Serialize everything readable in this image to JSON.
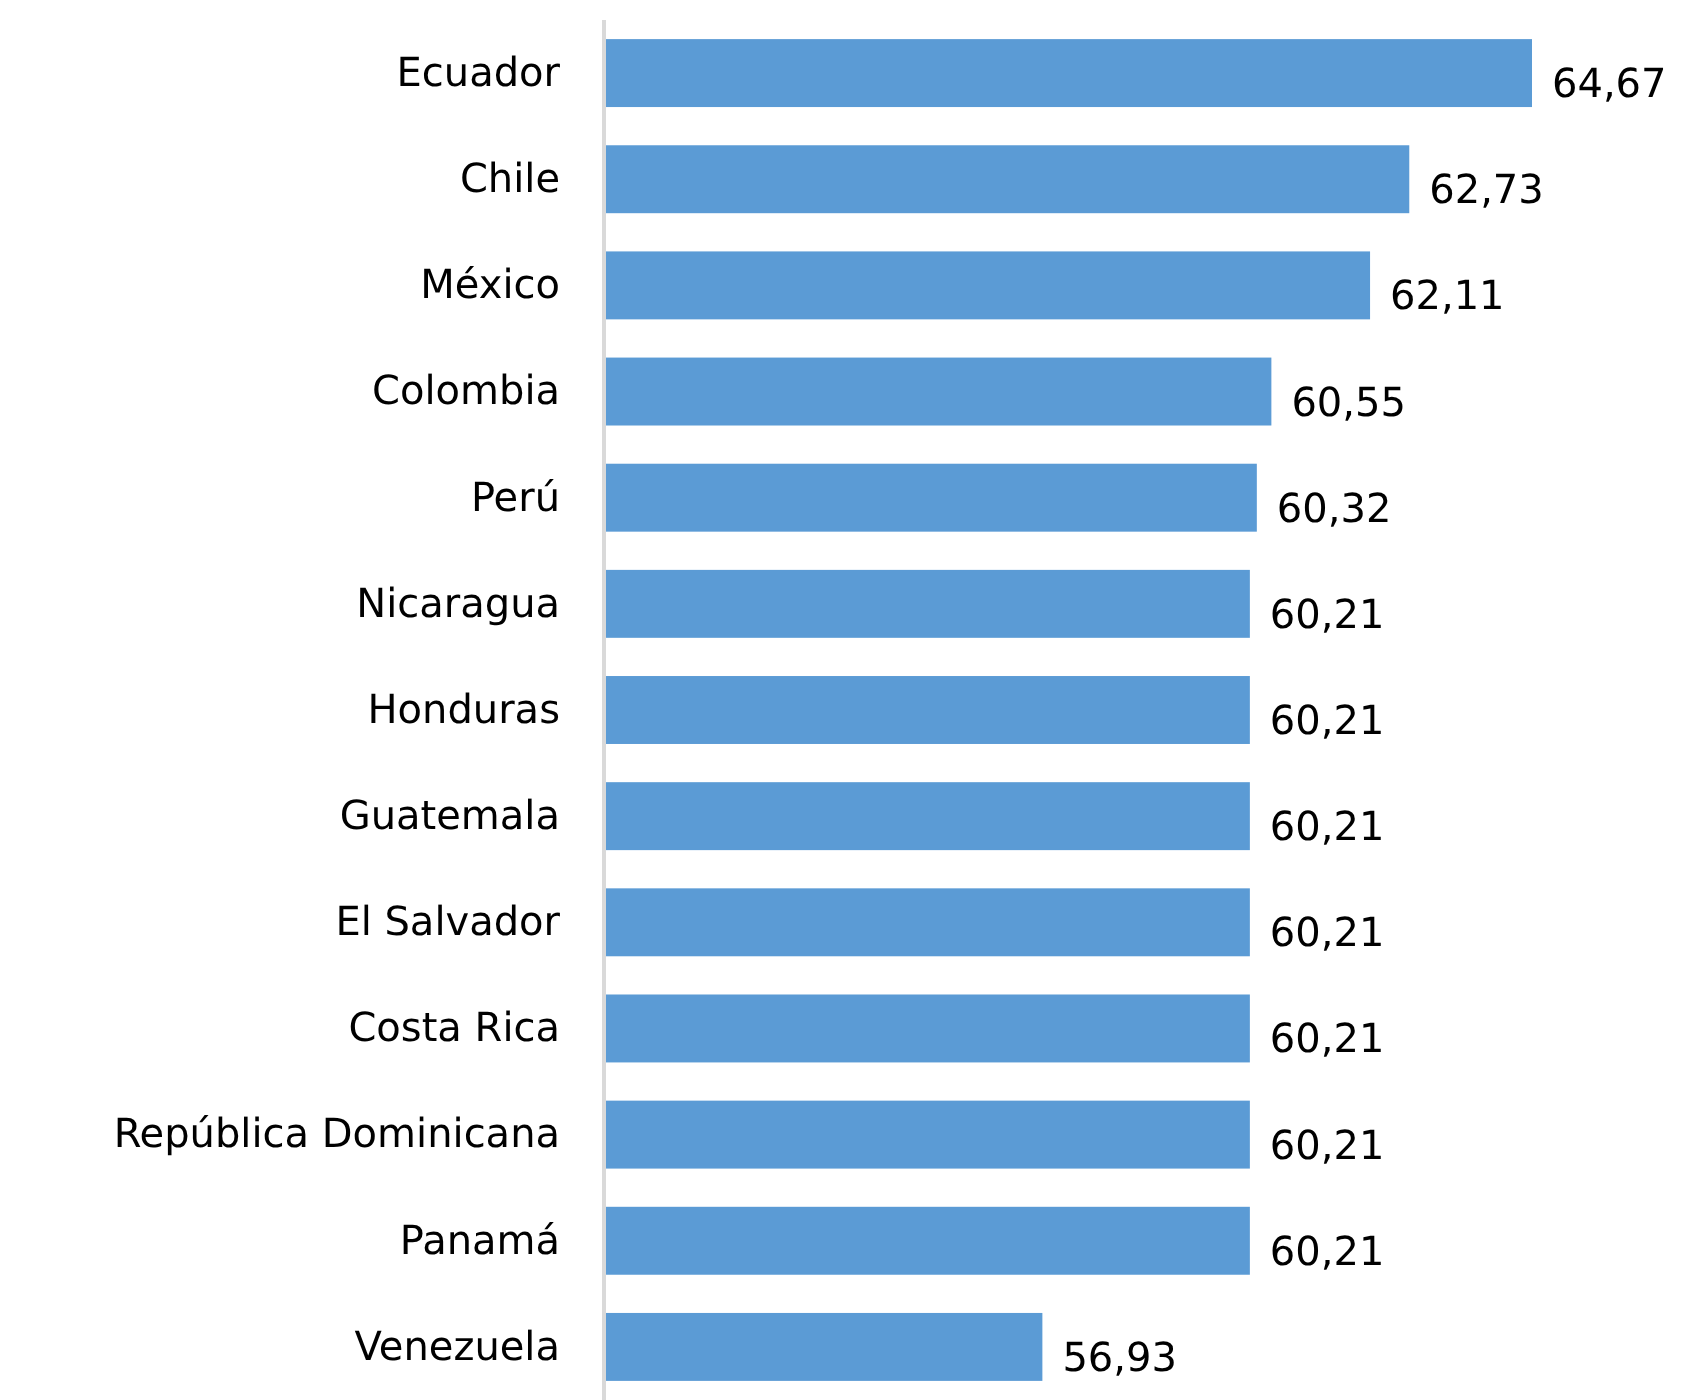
{
  "chart_data": {
    "type": "bar",
    "orientation": "horizontal",
    "categories": [
      "Ecuador",
      "Chile",
      "México",
      "Colombia",
      "Perú",
      "Nicaragua",
      "Honduras",
      "Guatemala",
      "El Salvador",
      "Costa Rica",
      "República Dominicana",
      "Panamá",
      "Venezuela"
    ],
    "values": [
      64.67,
      62.73,
      62.11,
      60.55,
      60.32,
      60.21,
      60.21,
      60.21,
      60.21,
      60.21,
      60.21,
      60.21,
      56.93
    ],
    "value_labels": [
      "64,67",
      "62,73",
      "62,11",
      "60,55",
      "60,32",
      "60,21",
      "60,21",
      "60,21",
      "60,21",
      "60,21",
      "60,21",
      "60,21",
      "56,93"
    ],
    "color": "#5b9bd5",
    "xlim": [
      50,
      64.67
    ],
    "tick_labels": "y"
  }
}
